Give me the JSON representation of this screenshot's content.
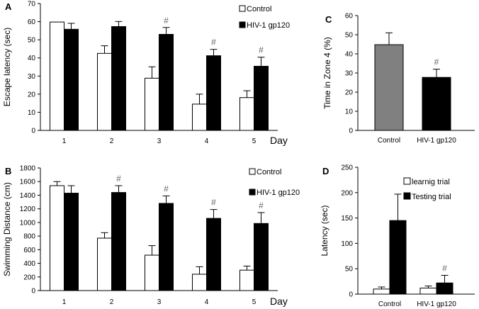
{
  "chart_data": [
    {
      "panel": "A",
      "type": "bar",
      "ylabel": "Escape latency (sec)",
      "xlabel": "Day",
      "categories": [
        "1",
        "2",
        "3",
        "4",
        "5"
      ],
      "ylim": [
        0,
        70
      ],
      "yticks": [
        0,
        10,
        20,
        30,
        40,
        50,
        60,
        70
      ],
      "series": [
        {
          "name": "Control",
          "color": "#ffffff",
          "values": [
            59.8,
            42.5,
            28.8,
            14.5,
            18.1
          ],
          "errors": [
            0,
            4.2,
            6.3,
            5.5,
            3.8
          ],
          "sig": [
            "",
            "",
            "",
            "",
            ""
          ]
        },
        {
          "name": "HIV-1 gp120",
          "color": "#000000",
          "values": [
            55.8,
            57.3,
            53.0,
            41.2,
            35.4
          ],
          "errors": [
            3.3,
            2.8,
            3.8,
            3.5,
            5.0
          ],
          "sig": [
            "",
            "",
            "#",
            "#",
            "#"
          ]
        }
      ],
      "legend": "top-right"
    },
    {
      "panel": "B",
      "type": "bar",
      "ylabel": "Swimming Distance (cm)",
      "xlabel": "Day",
      "categories": [
        "1",
        "2",
        "3",
        "4",
        "5"
      ],
      "ylim": [
        0,
        1800
      ],
      "yticks": [
        0,
        200,
        400,
        600,
        800,
        1000,
        1200,
        1400,
        1600,
        1800
      ],
      "series": [
        {
          "name": "Control",
          "color": "#ffffff",
          "values": [
            1540,
            770,
            520,
            240,
            300
          ],
          "errors": [
            60,
            80,
            140,
            110,
            60
          ],
          "sig": [
            "",
            "",
            "",
            "",
            ""
          ]
        },
        {
          "name": "HIV-1 gp120",
          "color": "#000000",
          "values": [
            1430,
            1440,
            1280,
            1060,
            985
          ],
          "errors": [
            110,
            100,
            110,
            130,
            160
          ],
          "sig": [
            "",
            "#",
            "#",
            "#",
            "#"
          ]
        }
      ],
      "legend": "top-right"
    },
    {
      "panel": "C",
      "type": "bar",
      "ylabel": "Time in Zone 4 (%)",
      "xlabel": "",
      "categories": [
        "Control",
        "HIV-1 gp120"
      ],
      "ylim": [
        0,
        60
      ],
      "yticks": [
        0,
        10,
        20,
        30,
        40,
        50,
        60
      ],
      "series": [
        {
          "name": "Time in Zone 4",
          "values": [
            44.8,
            27.7
          ],
          "errors": [
            6.2,
            4.3
          ],
          "colors": [
            "#808080",
            "#000000"
          ],
          "sig": [
            "",
            "#"
          ]
        }
      ]
    },
    {
      "panel": "D",
      "type": "bar",
      "ylabel": "Latency (sec)",
      "xlabel": "",
      "categories": [
        "Control",
        "HIV-1 gp120"
      ],
      "ylim": [
        0,
        250
      ],
      "yticks": [
        0,
        50,
        100,
        150,
        200,
        250
      ],
      "series": [
        {
          "name": "learnig trial",
          "color": "#ffffff",
          "values": [
            10,
            12
          ],
          "errors": [
            4,
            4
          ],
          "sig": [
            "",
            ""
          ]
        },
        {
          "name": "Testing trial",
          "color": "#000000",
          "values": [
            145,
            22
          ],
          "errors": [
            52,
            15
          ],
          "sig": [
            "",
            "#"
          ]
        }
      ],
      "legend": "top-right"
    }
  ]
}
